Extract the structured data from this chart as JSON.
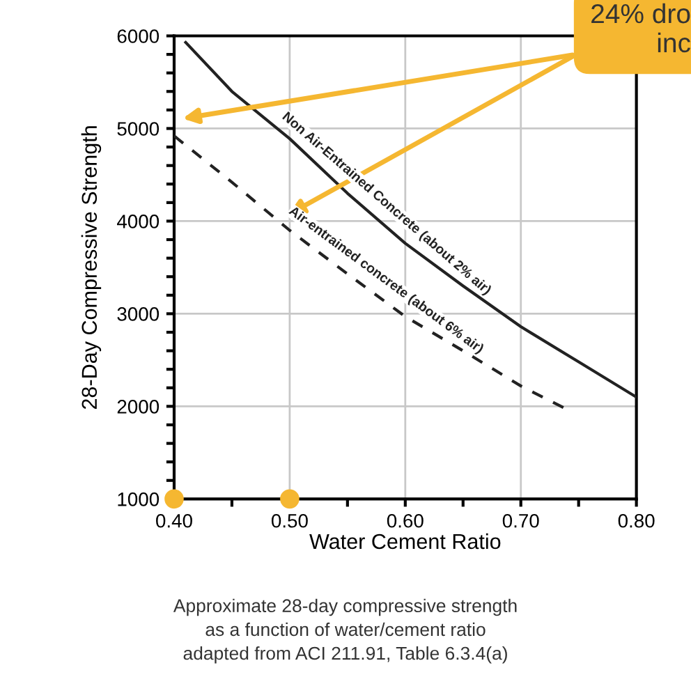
{
  "chart_data": {
    "type": "line",
    "xlabel": "Water Cement Ratio",
    "ylabel": "28-Day Compressive Strength",
    "xlim": [
      0.4,
      0.8
    ],
    "ylim": [
      1000,
      6000
    ],
    "xticks": [
      {
        "value": 0.4,
        "label": "0.40"
      },
      {
        "value": 0.45,
        "label": null
      },
      {
        "value": 0.5,
        "label": "0.50"
      },
      {
        "value": 0.55,
        "label": null
      },
      {
        "value": 0.6,
        "label": "0.60"
      },
      {
        "value": 0.65,
        "label": null
      },
      {
        "value": 0.7,
        "label": "0.70"
      },
      {
        "value": 0.75,
        "label": null
      },
      {
        "value": 0.8,
        "label": "0.80"
      }
    ],
    "yticks": [
      1000,
      {
        "value": 1200,
        "label": null
      },
      {
        "value": 1400,
        "label": null
      },
      {
        "value": 1600,
        "label": null
      },
      {
        "value": 1800,
        "label": null
      },
      2000,
      {
        "value": 2200,
        "label": null
      },
      {
        "value": 2400,
        "label": null
      },
      {
        "value": 2600,
        "label": null
      },
      {
        "value": 2800,
        "label": null
      },
      3000,
      {
        "value": 3200,
        "label": null
      },
      {
        "value": 3400,
        "label": null
      },
      {
        "value": 3600,
        "label": null
      },
      {
        "value": 3800,
        "label": null
      },
      4000,
      {
        "value": 4200,
        "label": null
      },
      {
        "value": 4400,
        "label": null
      },
      {
        "value": 4600,
        "label": null
      },
      {
        "value": 4800,
        "label": null
      },
      5000,
      {
        "value": 5200,
        "label": null
      },
      {
        "value": 5400,
        "label": null
      },
      {
        "value": 5600,
        "label": null
      },
      {
        "value": 5800,
        "label": null
      },
      6000
    ],
    "grid": true,
    "legend": false,
    "series": [
      {
        "name": "Non Air-Entrained Concrete (about 2% air)",
        "color": "#222222",
        "line_style": "solid",
        "x": [
          0.41,
          0.45,
          0.5,
          0.55,
          0.6,
          0.65,
          0.7,
          0.75,
          0.8
        ],
        "values": [
          5930,
          5400,
          4890,
          4300,
          3760,
          3300,
          2860,
          2480,
          2100
        ]
      },
      {
        "name": "Air-entrained concrete (about 6% air)",
        "color": "#222222",
        "line_style": "dashed",
        "x": [
          0.4,
          0.45,
          0.5,
          0.55,
          0.6,
          0.65,
          0.7,
          0.741
        ],
        "values": [
          4920,
          4420,
          3900,
          3430,
          2970,
          2600,
          2220,
          1960
        ]
      },
      {
        "type": "scatter",
        "color": "#f5b731",
        "marker": "circle",
        "x": [
          0.4,
          0.5
        ],
        "values": [
          1000,
          1000
        ]
      }
    ],
    "annotations": [
      "24% dro\ninc",
      "Approximate 28-day compressive strength\nas a function of water/cement ratio\nadapted from ACI 211.91, Table 6.3.4(a)"
    ]
  }
}
